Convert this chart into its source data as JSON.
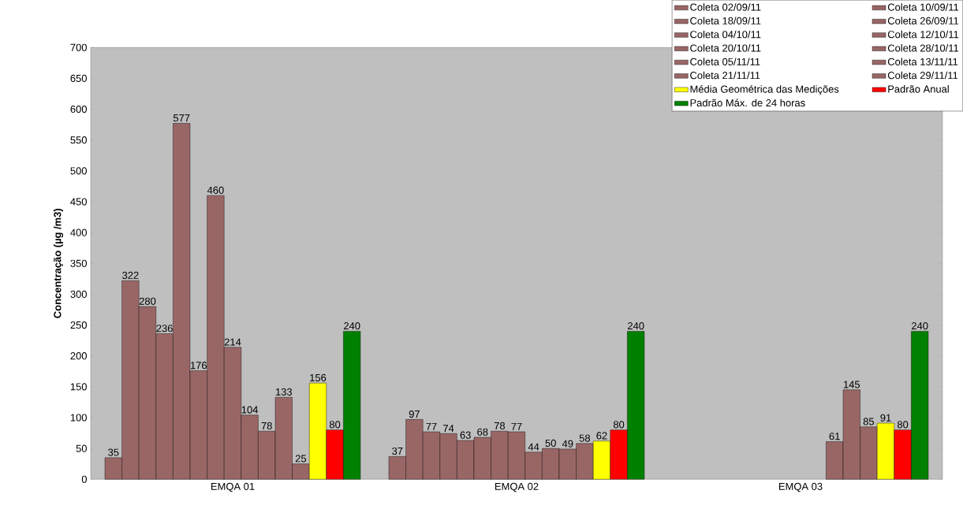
{
  "chart_data": {
    "type": "bar",
    "ylabel": "Concentração (µg /m3)",
    "categories": [
      "EMQA 01",
      "EMQA 02",
      "EMQA 03"
    ],
    "ylim": [
      0,
      700
    ],
    "yticks": [
      0,
      50,
      100,
      150,
      200,
      250,
      300,
      350,
      400,
      450,
      500,
      550,
      600,
      650,
      700
    ],
    "data_labels": true,
    "legend": "top right",
    "grid": false,
    "series": [
      {
        "name": "Coleta 02/09/11",
        "color": "#996666",
        "values": [
          35,
          37,
          null
        ]
      },
      {
        "name": "Coleta 10/09/11",
        "color": "#996666",
        "values": [
          322,
          97,
          null
        ]
      },
      {
        "name": "Coleta 18/09/11",
        "color": "#996666",
        "values": [
          280,
          77,
          null
        ]
      },
      {
        "name": "Coleta 26/09/11",
        "color": "#996666",
        "values": [
          236,
          74,
          null
        ]
      },
      {
        "name": "Coleta 04/10/11",
        "color": "#996666",
        "values": [
          577,
          63,
          null
        ]
      },
      {
        "name": "Coleta 12/10/11",
        "color": "#996666",
        "values": [
          176,
          68,
          null
        ]
      },
      {
        "name": "Coleta 20/10/11",
        "color": "#996666",
        "values": [
          460,
          78,
          null
        ]
      },
      {
        "name": "Coleta 28/10/11",
        "color": "#996666",
        "values": [
          214,
          77,
          null
        ]
      },
      {
        "name": "Coleta 05/11/11",
        "color": "#996666",
        "values": [
          104,
          44,
          null
        ]
      },
      {
        "name": "Coleta 13/11/11",
        "color": "#996666",
        "values": [
          78,
          50,
          61
        ]
      },
      {
        "name": "Coleta 21/11/11",
        "color": "#996666",
        "values": [
          133,
          49,
          145
        ]
      },
      {
        "name": "Coleta 29/11/11",
        "color": "#996666",
        "values": [
          25,
          58,
          85
        ]
      },
      {
        "name": "Média Geométrica das Medições",
        "color": "#ffff00",
        "values": [
          156,
          62,
          91
        ]
      },
      {
        "name": "Padrão Anual",
        "color": "#ff0000",
        "values": [
          80,
          80,
          80
        ]
      },
      {
        "name": "Padrão Máx. de 24 horas",
        "color": "#008000",
        "values": [
          240,
          240,
          240
        ]
      }
    ]
  }
}
